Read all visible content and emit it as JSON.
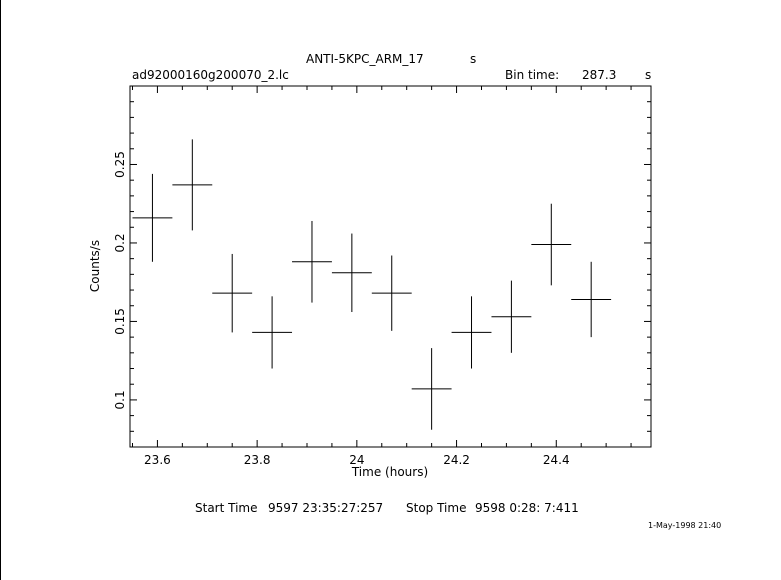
{
  "header": {
    "title": "ANTI-5KPC_ARM_17",
    "title_unit": "s",
    "filename": "ad92000160g200070_2.lc",
    "bin_label": "Bin time:",
    "bin_value": "287.3",
    "bin_unit": "s"
  },
  "footer": {
    "start_label": "Start Time",
    "start_value": "9597 23:35:27:257",
    "stop_label": "Stop Time",
    "stop_value": "9598  0:28: 7:411",
    "date_stamp": "1-May-1998 21:40"
  },
  "chart_data": {
    "type": "scatter",
    "xlabel": "Time (hours)",
    "ylabel": "Counts/s",
    "xlim": [
      23.545,
      24.59
    ],
    "ylim": [
      0.07,
      0.3
    ],
    "xticks": [
      23.6,
      23.8,
      24.0,
      24.2,
      24.4
    ],
    "xtick_labels": [
      "23.6",
      "23.8",
      "24",
      "24.2",
      "24.4"
    ],
    "yticks": [
      0.1,
      0.15,
      0.2,
      0.25
    ],
    "ytick_labels": [
      "0.1",
      "0.15",
      "0.2",
      "0.25"
    ],
    "x_half_width": 0.04,
    "points": [
      {
        "x": 23.59,
        "y": 0.216,
        "err": 0.028
      },
      {
        "x": 23.67,
        "y": 0.237,
        "err": 0.029
      },
      {
        "x": 23.75,
        "y": 0.168,
        "err": 0.025
      },
      {
        "x": 23.83,
        "y": 0.143,
        "err": 0.023
      },
      {
        "x": 23.91,
        "y": 0.188,
        "err": 0.026
      },
      {
        "x": 23.99,
        "y": 0.181,
        "err": 0.025
      },
      {
        "x": 24.07,
        "y": 0.168,
        "err": 0.024
      },
      {
        "x": 24.15,
        "y": 0.107,
        "err": 0.026
      },
      {
        "x": 24.23,
        "y": 0.143,
        "err": 0.023
      },
      {
        "x": 24.31,
        "y": 0.153,
        "err": 0.023
      },
      {
        "x": 24.39,
        "y": 0.199,
        "err": 0.026
      },
      {
        "x": 24.47,
        "y": 0.164,
        "err": 0.024
      }
    ]
  }
}
